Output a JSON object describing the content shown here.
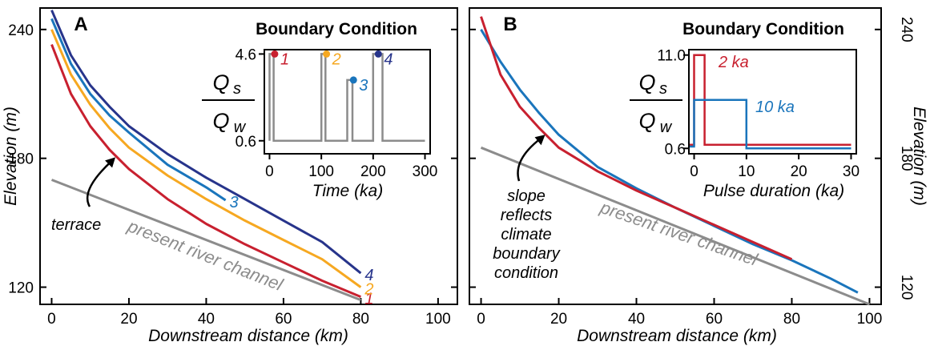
{
  "chart_data": [
    {
      "type": "line",
      "panel_label": "A",
      "xlabel": "Downstream distance (km)",
      "ylabel": "Elevation (m)",
      "xlim": [
        -3,
        105
      ],
      "ylim": [
        112,
        250
      ],
      "xticks": [
        0,
        20,
        40,
        60,
        80,
        100
      ],
      "yticks": [
        120,
        180,
        240
      ],
      "grid": false,
      "legend": "inline labels at curve ends",
      "series": [
        {
          "name": "1",
          "color": "#C8202F",
          "x": [
            0,
            5,
            10,
            15,
            20,
            30,
            40,
            50,
            60,
            70,
            80
          ],
          "y": [
            233,
            210,
            195,
            184,
            175,
            161,
            149.5,
            140,
            131.5,
            123,
            115.5
          ]
        },
        {
          "name": "2",
          "color": "#F6A821",
          "x": [
            0,
            5,
            10,
            15,
            20,
            30,
            40,
            50,
            60,
            70,
            80
          ],
          "y": [
            240,
            219,
            205,
            194,
            185,
            172,
            161,
            151,
            142,
            133,
            120
          ]
        },
        {
          "name": "3",
          "color": "#1A75BC",
          "x": [
            0,
            5,
            10,
            15,
            20,
            30,
            40,
            45
          ],
          "y": [
            245,
            224,
            210,
            200,
            192,
            177,
            166.5,
            160.5
          ]
        },
        {
          "name": "4",
          "color": "#27348B",
          "x": [
            0,
            5,
            10,
            15,
            20,
            30,
            40,
            50,
            60,
            70,
            80
          ],
          "y": [
            249,
            228,
            214,
            204,
            195,
            182,
            171,
            161,
            151,
            141,
            126.5
          ]
        },
        {
          "name": "present river channel",
          "color": "#8C8C8C",
          "x": [
            0,
            80
          ],
          "y": [
            170,
            114
          ]
        }
      ],
      "annotations": [
        {
          "text": "terrace",
          "x": 11,
          "y": 150,
          "arrow_to": [
            16.5,
            180.5
          ]
        }
      ],
      "inset": {
        "title": "Boundary Condition",
        "ylabel_num": "Q",
        "ylabel_num_sub": "s",
        "ylabel_den": "Q",
        "ylabel_den_sub": "w",
        "xlabel": "Time (ka)",
        "xlim": [
          -10,
          310
        ],
        "ylim": [
          0,
          4.8
        ],
        "xticks": [
          0,
          100,
          200,
          300
        ],
        "yticks": [
          0.6,
          4.6
        ],
        "color": "#8C8C8C",
        "x": [
          0,
          0,
          8,
          8,
          100,
          100,
          108,
          108,
          150,
          150,
          160,
          160,
          200,
          200,
          218,
          218,
          300
        ],
        "y": [
          0.6,
          4.6,
          4.6,
          0.6,
          0.6,
          4.6,
          4.6,
          0.6,
          0.6,
          3.4,
          3.4,
          0.6,
          0.6,
          4.6,
          4.6,
          0.6,
          0.6
        ],
        "markers": [
          {
            "label": "1",
            "x": 10,
            "y": 4.6,
            "color": "#C8202F"
          },
          {
            "label": "2",
            "x": 110,
            "y": 4.6,
            "color": "#F6A821"
          },
          {
            "label": "3",
            "x": 162,
            "y": 3.4,
            "color": "#1A75BC"
          },
          {
            "label": "4",
            "x": 210,
            "y": 4.6,
            "color": "#27348B"
          }
        ]
      }
    },
    {
      "type": "line",
      "panel_label": "B",
      "xlabel": "Downstream distance (km)",
      "ylabel": "Elevation (m)",
      "xlim": [
        -3,
        103
      ],
      "ylim": [
        112,
        250
      ],
      "xticks": [
        0,
        20,
        40,
        60,
        80,
        100
      ],
      "yticks": [
        120,
        180,
        240
      ],
      "grid": false,
      "series": [
        {
          "name": "2 ka",
          "color": "#C8202F",
          "x": [
            0,
            5,
            10,
            15,
            20,
            30,
            40,
            50,
            60,
            70,
            80
          ],
          "y": [
            246,
            219,
            204,
            194,
            185,
            174,
            165,
            157,
            149,
            141,
            133
          ]
        },
        {
          "name": "10 ka",
          "color": "#1A75BC",
          "x": [
            0,
            5,
            10,
            15,
            20,
            30,
            40,
            50,
            60,
            70,
            80,
            90,
            97
          ],
          "y": [
            240,
            225,
            212,
            201,
            191,
            176,
            166,
            157,
            148.5,
            140,
            132.5,
            124,
            117.5
          ]
        },
        {
          "name": "present river channel",
          "color": "#8C8C8C",
          "x": [
            0,
            100
          ],
          "y": [
            185,
            112
          ]
        }
      ],
      "annotations": [
        {
          "text": "slope reflects climate boundary condition",
          "lines": [
            "slope",
            "reflects",
            "climate",
            "boundary",
            "condition"
          ],
          "x": 1,
          "y": 155,
          "arrow_to": [
            16.5,
            191
          ]
        }
      ],
      "inset": {
        "title": "Boundary Condition",
        "ylabel_num": "Q",
        "ylabel_num_sub": "s",
        "ylabel_den": "Q",
        "ylabel_den_sub": "w",
        "xlabel": "Pulse duration (ka)",
        "xlim": [
          -1,
          31
        ],
        "ylim": [
          0,
          11.6
        ],
        "xticks": [
          0,
          10,
          20,
          30
        ],
        "yticks": [
          0.6,
          11.0
        ],
        "series": [
          {
            "label": "2 ka",
            "color": "#C8202F",
            "x": [
              -1,
              0,
              0,
              2,
              2,
              30
            ],
            "y": [
              1.0,
              1.0,
              11.0,
              11.0,
              1.0,
              1.0
            ]
          },
          {
            "label": "10 ka",
            "color": "#1A75BC",
            "x": [
              -1,
              0,
              0,
              10,
              10,
              30
            ],
            "y": [
              0.8,
              0.8,
              6.0,
              6.0,
              0.6,
              0.6
            ]
          }
        ]
      }
    }
  ],
  "labels": {
    "a_terrace": "terrace",
    "a_channel": "present river channel",
    "b_channel": "present river channel"
  }
}
